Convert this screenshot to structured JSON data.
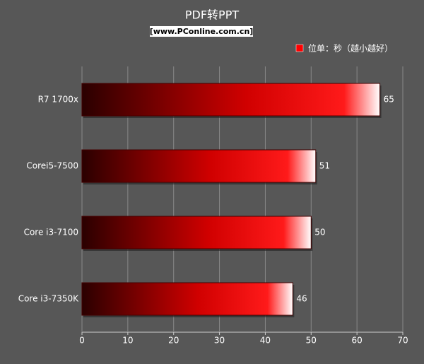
{
  "chart_data": {
    "type": "bar",
    "orientation": "horizontal",
    "title": "PDF转PPT",
    "subtitle": "[www.PConline.com.cn]",
    "categories": [
      "R7 1700x",
      "Corei5-7500",
      "Core i3-7100",
      "Core i3-7350K"
    ],
    "series": [
      {
        "name": "位单：秒（越小越好）",
        "color": "#ff0000",
        "values": [
          65,
          51,
          50,
          46
        ]
      }
    ],
    "xlim": [
      0,
      70
    ],
    "xticks": [
      0,
      10,
      20,
      30,
      40,
      50,
      60,
      70
    ],
    "grid": true,
    "legend": "top-right"
  }
}
